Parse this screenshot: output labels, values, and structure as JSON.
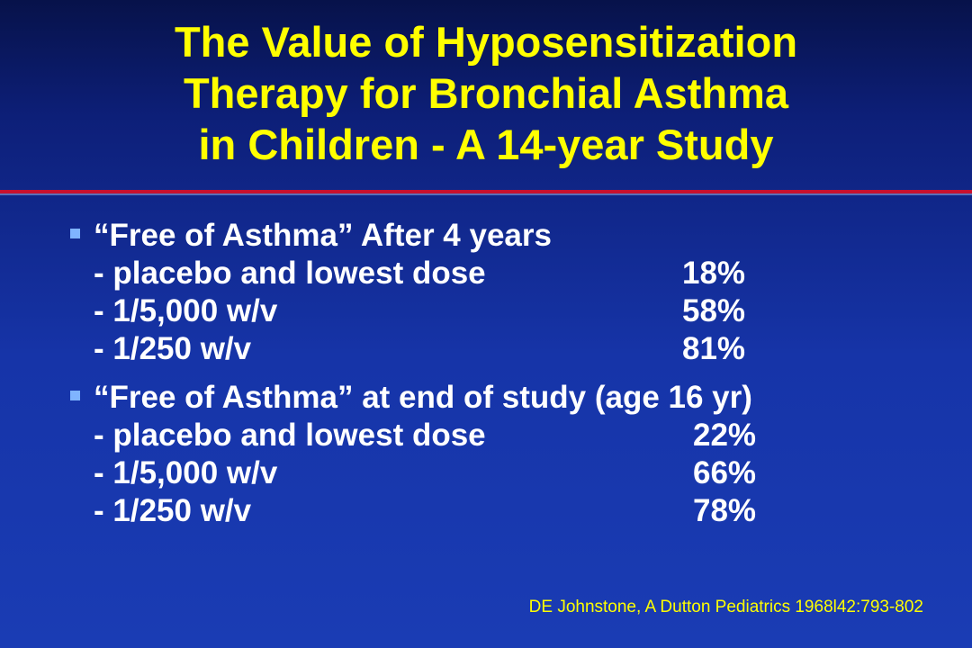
{
  "slide": {
    "title_lines": [
      "The Value of Hyposensitization",
      "Therapy for Bronchial Asthma",
      "in Children - A 14-year Study"
    ],
    "bullets": [
      {
        "heading": "“Free of Asthma” After 4 years",
        "rows": [
          {
            "label": "- placebo and lowest dose",
            "value": "18%"
          },
          {
            "label": "- 1/5,000 w/v",
            "value": "58%"
          },
          {
            "label": "- 1/250 w/v",
            "value": "81%"
          }
        ]
      },
      {
        "heading": "“Free of Asthma” at end of study (age 16 yr)",
        "rows": [
          {
            "label": "- placebo and lowest dose",
            "value": "22%"
          },
          {
            "label": "- 1/5,000 w/v",
            "value": "66%"
          },
          {
            "label": "- 1/250 w/v",
            "value": "78%"
          }
        ]
      }
    ],
    "citation": "DE Johnstone, A Dutton Pediatrics 1968l42:793-802"
  },
  "colors": {
    "title": "#ffff00",
    "body_text": "#ffffff",
    "rule": "#c8102e",
    "bullet_marker": "#7fb4ff"
  }
}
